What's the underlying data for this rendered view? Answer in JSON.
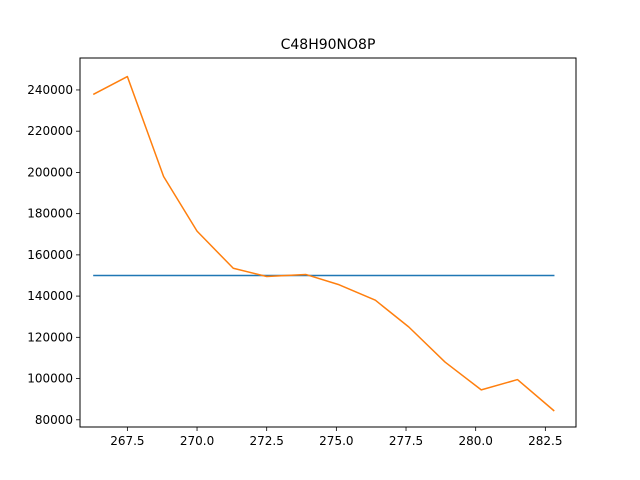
{
  "chart_data": {
    "type": "line",
    "title": "C48H90NO8P",
    "xlabel": "",
    "ylabel": "",
    "xlim": [
      265.8,
      283.6
    ],
    "ylim": [
      76500,
      255500
    ],
    "x_ticks": [
      267.5,
      270.0,
      272.5,
      275.0,
      277.5,
      280.0,
      282.5
    ],
    "x_tick_labels": [
      "267.5",
      "270.0",
      "272.5",
      "275.0",
      "277.5",
      "280.0",
      "282.5"
    ],
    "y_ticks": [
      80000,
      100000,
      120000,
      140000,
      160000,
      180000,
      200000,
      220000,
      240000
    ],
    "y_tick_labels": [
      "80000",
      "100000",
      "120000",
      "140000",
      "160000",
      "180000",
      "200000",
      "220000",
      "240000"
    ],
    "grid": false,
    "series": [
      {
        "color": "#1f77b4",
        "x": [
          266.3,
          282.8
        ],
        "y": [
          150000,
          150000
        ]
      },
      {
        "color": "#ff7f0e",
        "x": [
          266.3,
          267.5,
          268.8,
          270.0,
          271.3,
          272.5,
          273.9,
          275.1,
          276.4,
          277.6,
          278.9,
          280.2,
          281.5,
          282.8
        ],
        "y": [
          238000,
          246500,
          198000,
          171500,
          153500,
          149500,
          150500,
          145500,
          138000,
          125000,
          108000,
          94500,
          99500,
          84500
        ]
      }
    ]
  }
}
